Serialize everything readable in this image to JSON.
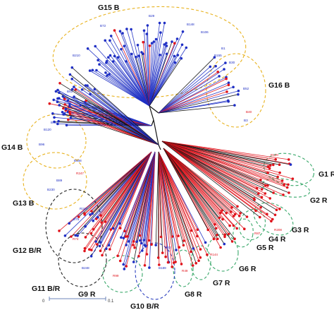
{
  "colors": {
    "blue": "#1f2fc4",
    "red": "#e0131b",
    "black": "#111111",
    "ellipse_yellow": "#e8b21e",
    "ellipse_green": "#39a86a",
    "ellipse_black": "#222222",
    "ellipse_blue": "#2b3fbf"
  },
  "groups": [
    {
      "key": "g15",
      "label": "G15 B"
    },
    {
      "key": "g16",
      "label": "G16 B"
    },
    {
      "key": "g14",
      "label": "G14 B"
    },
    {
      "key": "g13",
      "label": "G13 B"
    },
    {
      "key": "g1",
      "label": "G1 R"
    },
    {
      "key": "g2",
      "label": "G2 R"
    },
    {
      "key": "g3",
      "label": "G3 R"
    },
    {
      "key": "g4",
      "label": "G4 R"
    },
    {
      "key": "g5",
      "label": "G5 R"
    },
    {
      "key": "g6",
      "label": "G6 R"
    },
    {
      "key": "g7",
      "label": "G7 R"
    },
    {
      "key": "g8",
      "label": "G8 R"
    },
    {
      "key": "g9",
      "label": "G9 R"
    },
    {
      "key": "g10",
      "label": "G10 B/R"
    },
    {
      "key": "g11",
      "label": "G11 B/R"
    },
    {
      "key": "g12",
      "label": "G12 B/R"
    }
  ],
  "leaf_labels": {
    "l1": "B29",
    "l2": "B72",
    "l3": "B148",
    "l4": "B106",
    "l5": "B155",
    "l6": "B1",
    "l7": "B30",
    "l8": "B210",
    "l9": "B51",
    "l10": "B52",
    "l11": "B40",
    "l12": "B3",
    "l13": "B70",
    "l14": "B120",
    "l15": "B96",
    "l16": "B168",
    "l17": "R247",
    "l18": "B230",
    "l19": "B89",
    "l20": "R248",
    "l21": "R120",
    "l22": "R208",
    "l23": "R87",
    "l24": "R144",
    "l25": "B189",
    "l26": "R49",
    "l27": "B33",
    "l28": "B75",
    "l29": "R74",
    "l30": "B248",
    "l31": "R99"
  },
  "scale_bar": {
    "min_label": "0",
    "max_label": "0.1"
  }
}
